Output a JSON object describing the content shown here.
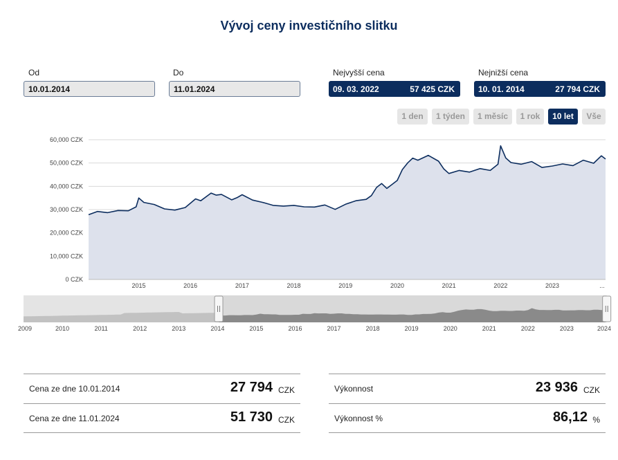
{
  "page_title": "Vývoj ceny investičního slitku",
  "from": {
    "label": "Od",
    "value": "10.01.2014"
  },
  "to": {
    "label": "Do",
    "value": "11.01.2024"
  },
  "highest": {
    "label": "Nejvyšší cena",
    "date": "09. 03. 2022",
    "price": "57 425 CZK"
  },
  "lowest": {
    "label": "Nejnižší cena",
    "date": "10. 01. 2014",
    "price": "27 794 CZK"
  },
  "ranges": [
    "1 den",
    "1 týden",
    "1 měsíc",
    "1 rok",
    "10 let",
    "Vše"
  ],
  "active_range": "10 let",
  "chart_data": {
    "type": "area",
    "y_ticks": [
      "60,000 CZK",
      "50,000 CZK",
      "40,000 CZK",
      "30,000 CZK",
      "20,000 CZK",
      "10,000 CZK",
      "0 CZK"
    ],
    "ylim": [
      0,
      60000
    ],
    "x_ticks": [
      "2015",
      "2016",
      "2017",
      "2018",
      "2019",
      "2020",
      "2021",
      "2022",
      "2023",
      "..."
    ],
    "xlim": [
      2014.03,
      2024.03
    ],
    "grid": true,
    "colors": {
      "line": "#0c2d5e",
      "fill": "#dde1ec"
    },
    "x": [
      2014.03,
      2014.2,
      2014.4,
      2014.6,
      2014.8,
      2014.95,
      2015.0,
      2015.1,
      2015.3,
      2015.5,
      2015.7,
      2015.9,
      2016.1,
      2016.2,
      2016.4,
      2016.5,
      2016.6,
      2016.8,
      2016.9,
      2017.0,
      2017.2,
      2017.4,
      2017.6,
      2017.8,
      2018.0,
      2018.2,
      2018.4,
      2018.6,
      2018.8,
      2019.0,
      2019.2,
      2019.4,
      2019.5,
      2019.6,
      2019.7,
      2019.8,
      2020.0,
      2020.1,
      2020.2,
      2020.3,
      2020.4,
      2020.6,
      2020.8,
      2020.9,
      2021.0,
      2021.2,
      2021.4,
      2021.6,
      2021.8,
      2021.95,
      2022.0,
      2022.1,
      2022.2,
      2022.4,
      2022.6,
      2022.8,
      2023.0,
      2023.2,
      2023.4,
      2023.6,
      2023.8,
      2023.95,
      2024.03
    ],
    "values": [
      27800,
      29200,
      28700,
      29600,
      29500,
      31200,
      35000,
      33100,
      32200,
      30300,
      29800,
      30900,
      34600,
      33800,
      37100,
      36200,
      36500,
      34200,
      35100,
      36400,
      34100,
      33100,
      31800,
      31500,
      31800,
      31200,
      31100,
      32000,
      30100,
      32300,
      33800,
      34400,
      36000,
      39500,
      41200,
      39100,
      42500,
      47200,
      50000,
      52100,
      51200,
      53300,
      50800,
      47500,
      45500,
      46800,
      46100,
      47600,
      46800,
      49500,
      57400,
      52200,
      50200,
      49500,
      50600,
      48100,
      48700,
      49600,
      48900,
      51200,
      49900,
      53100,
      51700
    ]
  },
  "navigator": {
    "x_ticks": [
      "2009",
      "2010",
      "2011",
      "2012",
      "2013",
      "2014",
      "2015",
      "2016",
      "2017",
      "2018",
      "2019",
      "2020",
      "2021",
      "2022",
      "2023",
      "2024"
    ]
  },
  "stats": {
    "start_label": "Cena ze dne 10.01.2014",
    "start_value": "27 794",
    "start_unit": "CZK",
    "end_label": "Cena ze dne 11.01.2024",
    "end_value": "51 730",
    "end_unit": "CZK",
    "perf_label": "Výkonnost",
    "perf_value": "23 936",
    "perf_unit": "CZK",
    "perf_pct_label": "Výkonnost %",
    "perf_pct_value": "86,12",
    "perf_pct_unit": "%"
  }
}
